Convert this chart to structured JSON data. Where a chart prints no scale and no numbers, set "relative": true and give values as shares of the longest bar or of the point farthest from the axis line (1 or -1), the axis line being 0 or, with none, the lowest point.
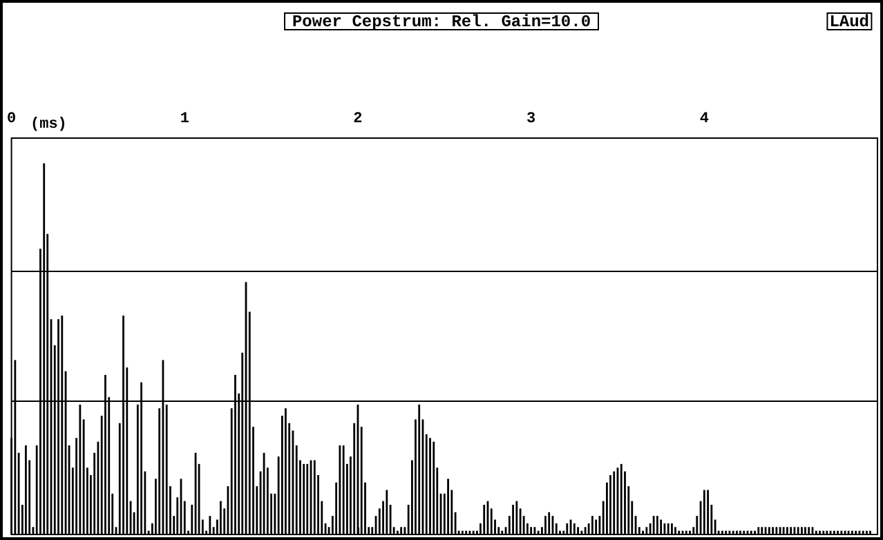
{
  "chart_data": {
    "type": "bar",
    "title": "Power Cepstrum: Rel. Gain=10.0",
    "xlabel": "(ms)",
    "annotations": [
      "LAud"
    ],
    "relative": true,
    "ref_lines": [
      {
        "axis": "y",
        "value": 0.36
      },
      {
        "axis": "y",
        "value": 0.71
      }
    ],
    "color": "#000000",
    "xlim": [
      0,
      5
    ],
    "xticks": [
      0,
      1,
      2,
      3,
      4
    ],
    "x": [
      0,
      0.021,
      0.042,
      0.063,
      0.083,
      0.104,
      0.125,
      0.146,
      0.167,
      0.188,
      0.208,
      0.229,
      0.25,
      0.271,
      0.292,
      0.313,
      0.333,
      0.354,
      0.375,
      0.396,
      0.417,
      0.438,
      0.458,
      0.479,
      0.5,
      0.521,
      0.542,
      0.563,
      0.583,
      0.604,
      0.625,
      0.646,
      0.667,
      0.688,
      0.708,
      0.729,
      0.75,
      0.771,
      0.792,
      0.813,
      0.833,
      0.854,
      0.875,
      0.896,
      0.917,
      0.938,
      0.958,
      0.979,
      1,
      1.021,
      1.042,
      1.063,
      1.083,
      1.104,
      1.125,
      1.146,
      1.167,
      1.188,
      1.208,
      1.229,
      1.25,
      1.271,
      1.292,
      1.313,
      1.333,
      1.354,
      1.375,
      1.396,
      1.417,
      1.438,
      1.458,
      1.479,
      1.5,
      1.521,
      1.542,
      1.563,
      1.583,
      1.604,
      1.625,
      1.646,
      1.667,
      1.688,
      1.708,
      1.729,
      1.75,
      1.771,
      1.792,
      1.813,
      1.833,
      1.854,
      1.875,
      1.896,
      1.917,
      1.938,
      1.958,
      1.979,
      2,
      2.021,
      2.042,
      2.063,
      2.083,
      2.104,
      2.125,
      2.146,
      2.167,
      2.188,
      2.208,
      2.229,
      2.25,
      2.271,
      2.292,
      2.313,
      2.333,
      2.354,
      2.375,
      2.396,
      2.417,
      2.438,
      2.458,
      2.479,
      2.5,
      2.521,
      2.542,
      2.563,
      2.583,
      2.604,
      2.625,
      2.646,
      2.667,
      2.688,
      2.708,
      2.729,
      2.75,
      2.771,
      2.792,
      2.813,
      2.833,
      2.854,
      2.875,
      2.896,
      2.917,
      2.938,
      2.958,
      2.979,
      3,
      3.021,
      3.042,
      3.063,
      3.083,
      3.104,
      3.125,
      3.146,
      3.167,
      3.188,
      3.208,
      3.229,
      3.25,
      3.271,
      3.292,
      3.313,
      3.333,
      3.354,
      3.375,
      3.396,
      3.417,
      3.438,
      3.458,
      3.479,
      3.5,
      3.521,
      3.542,
      3.563,
      3.583,
      3.604,
      3.625,
      3.646,
      3.667,
      3.688,
      3.708,
      3.729,
      3.75,
      3.771,
      3.792,
      3.813,
      3.833,
      3.854,
      3.875,
      3.896,
      3.917,
      3.938,
      3.958,
      3.979,
      4,
      4.021,
      4.042,
      4.063,
      4.083,
      4.104,
      4.125,
      4.146,
      4.167,
      4.188,
      4.208,
      4.229,
      4.25,
      4.271,
      4.292,
      4.313,
      4.333,
      4.354,
      4.375,
      4.396,
      4.417,
      4.438,
      4.458,
      4.479,
      4.5,
      4.521,
      4.542,
      4.563,
      4.583,
      4.604,
      4.625,
      4.646,
      4.667,
      4.688,
      4.708,
      4.729,
      4.75,
      4.771,
      4.792,
      4.813,
      4.833,
      4.854,
      4.875,
      4.896,
      4.917,
      4.938,
      4.958
    ],
    "values": [
      0.26,
      0.47,
      0.22,
      0.08,
      0.24,
      0.2,
      0.02,
      0.24,
      0.77,
      1,
      0.81,
      0.58,
      0.51,
      0.58,
      0.59,
      0.44,
      0.24,
      0.18,
      0.26,
      0.35,
      0.31,
      0.18,
      0.16,
      0.22,
      0.25,
      0.32,
      0.43,
      0.37,
      0.11,
      0.02,
      0.3,
      0.59,
      0.45,
      0.09,
      0.06,
      0.35,
      0.41,
      0.17,
      0.01,
      0.03,
      0.15,
      0.34,
      0.47,
      0.35,
      0.13,
      0.05,
      0.1,
      0.15,
      0.09,
      0.01,
      0.08,
      0.22,
      0.19,
      0.04,
      0.01,
      0.05,
      0.02,
      0.04,
      0.09,
      0.07,
      0.13,
      0.34,
      0.43,
      0.38,
      0.49,
      0.68,
      0.6,
      0.29,
      0.13,
      0.17,
      0.22,
      0.18,
      0.11,
      0.11,
      0.21,
      0.32,
      0.34,
      0.3,
      0.28,
      0.24,
      0.2,
      0.19,
      0.19,
      0.2,
      0.2,
      0.16,
      0.09,
      0.03,
      0.02,
      0.05,
      0.14,
      0.24,
      0.24,
      0.19,
      0.21,
      0.3,
      0.35,
      0.29,
      0.14,
      0.02,
      0.02,
      0.05,
      0.07,
      0.09,
      0.12,
      0.08,
      0.02,
      0.01,
      0.02,
      0.02,
      0.08,
      0.2,
      0.31,
      0.35,
      0.31,
      0.27,
      0.26,
      0.25,
      0.18,
      0.11,
      0.11,
      0.15,
      0.12,
      0.06,
      0.01,
      0.01,
      0.01,
      0.01,
      0.01,
      0.01,
      0.03,
      0.08,
      0.09,
      0.07,
      0.04,
      0.02,
      0.01,
      0.02,
      0.05,
      0.08,
      0.09,
      0.07,
      0.05,
      0.03,
      0.02,
      0.02,
      0.01,
      0.02,
      0.05,
      0.06,
      0.05,
      0.03,
      0.01,
      0.01,
      0.03,
      0.04,
      0.03,
      0.02,
      0.01,
      0.02,
      0.03,
      0.05,
      0.04,
      0.05,
      0.09,
      0.14,
      0.16,
      0.17,
      0.18,
      0.19,
      0.17,
      0.13,
      0.09,
      0.05,
      0.02,
      0.01,
      0.02,
      0.03,
      0.05,
      0.05,
      0.04,
      0.03,
      0.03,
      0.03,
      0.02,
      0.01,
      0.01,
      0.01,
      0.01,
      0.02,
      0.05,
      0.09,
      0.12,
      0.12,
      0.08,
      0.04,
      0.01,
      0.01,
      0.01,
      0.01,
      0.01,
      0.01,
      0.01,
      0.01,
      0.01,
      0.01,
      0.01,
      0.02,
      0.02,
      0.02,
      0.02,
      0.02,
      0.02,
      0.02,
      0.02,
      0.02,
      0.02,
      0.02,
      0.02,
      0.02,
      0.02,
      0.02,
      0.02,
      0.01,
      0.01,
      0.01,
      0.01,
      0.01,
      0.01,
      0.01,
      0.01,
      0.01,
      0.01,
      0.01,
      0.01,
      0.01,
      0.01,
      0.01,
      0.01
    ]
  }
}
